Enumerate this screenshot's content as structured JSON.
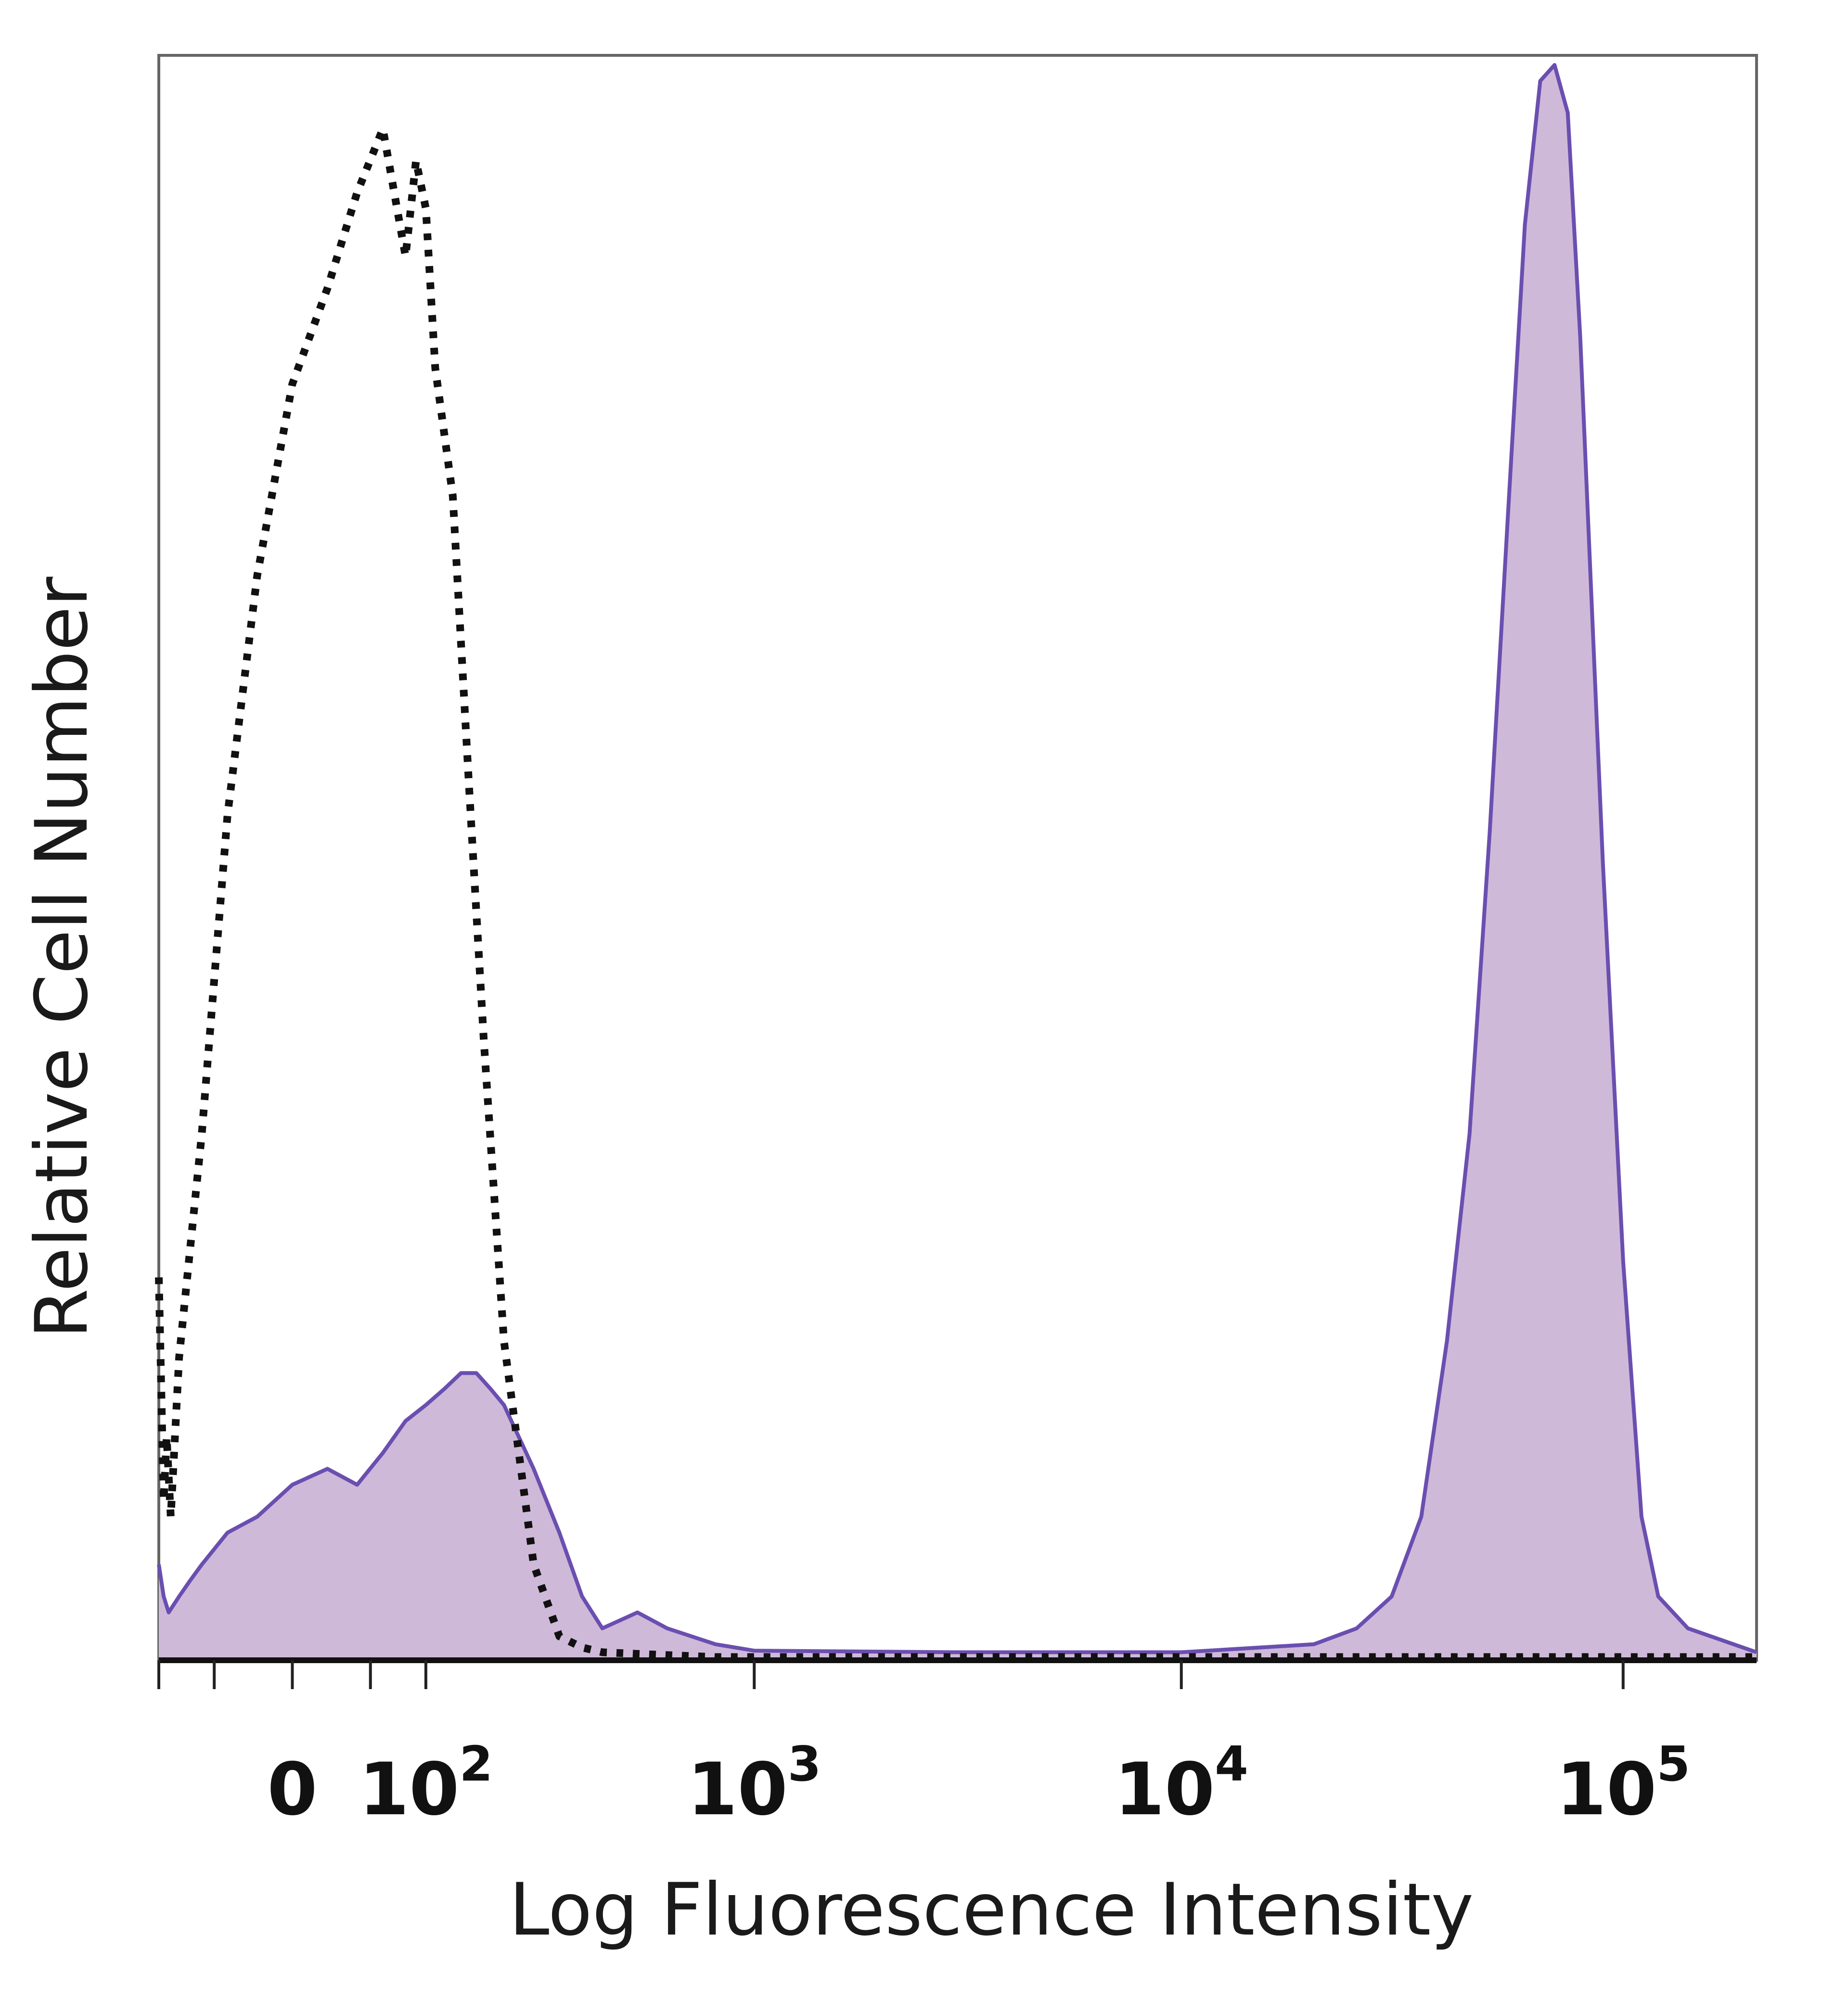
{
  "chart_data": {
    "type": "area",
    "xlabel": "Log Fluorescence Intensity",
    "ylabel": "Relative Cell Number",
    "x_scale": "biexponential",
    "xlim": [
      -100,
      200000
    ],
    "ylim": [
      0,
      100
    ],
    "grid": false,
    "legend": "none",
    "x_ticks": [
      {
        "value": 0,
        "base": "0",
        "exp": ""
      },
      {
        "value": 100,
        "base": "10",
        "exp": "2"
      },
      {
        "value": 1000,
        "base": "10",
        "exp": "3"
      },
      {
        "value": 10000,
        "base": "10",
        "exp": "4"
      },
      {
        "value": 100000,
        "base": "10",
        "exp": "5"
      }
    ],
    "series": [
      {
        "style": "dotted",
        "color": "#111111",
        "fill": "none",
        "x": [
          -100,
          -95,
          -92,
          -88,
          -80,
          -60,
          -40,
          -20,
          0,
          20,
          40,
          60,
          80,
          90,
          100,
          110,
          130,
          150,
          170,
          200,
          250,
          300,
          350,
          400,
          500,
          800,
          3000,
          30000,
          200000
        ],
        "y": [
          24,
          10,
          14,
          9,
          19,
          33,
          53,
          68,
          80,
          86,
          92,
          96,
          88,
          94,
          91,
          81,
          73,
          55,
          39,
          20,
          6,
          1.5,
          0.8,
          0.5,
          0.4,
          0.2,
          0.2,
          0.2,
          0.2
        ]
      },
      {
        "style": "solid",
        "color": "#6a4fb0",
        "fill": "#cfb9d9",
        "x": [
          -100,
          -95,
          -90,
          -80,
          -70,
          -60,
          -40,
          -20,
          0,
          20,
          40,
          60,
          80,
          100,
          120,
          140,
          160,
          180,
          200,
          250,
          300,
          350,
          400,
          500,
          600,
          800,
          1000,
          3000,
          10000,
          20000,
          25000,
          30000,
          35000,
          40000,
          45000,
          50000,
          55000,
          60000,
          65000,
          70000,
          75000,
          80000,
          90000,
          100000,
          110000,
          120000,
          140000,
          200000
        ],
        "y": [
          6,
          4,
          3,
          4,
          5,
          6,
          8,
          9,
          11,
          12,
          11,
          13,
          15,
          16,
          17,
          18,
          18,
          17,
          16,
          12,
          8,
          4,
          2,
          3,
          2,
          1,
          0.6,
          0.5,
          0.5,
          1,
          2,
          4,
          9,
          20,
          33,
          52,
          72,
          90,
          99,
          100,
          97,
          83,
          50,
          25,
          9,
          4,
          2,
          0.5
        ]
      }
    ]
  }
}
